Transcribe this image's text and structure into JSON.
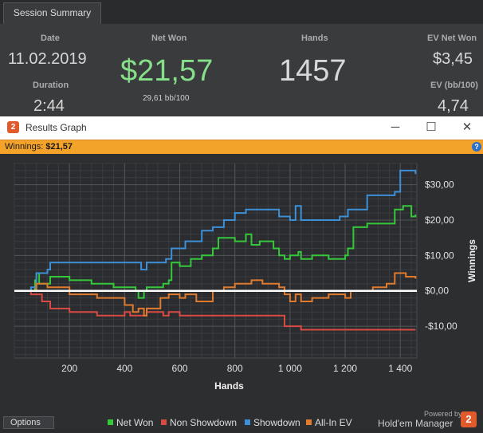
{
  "summary": {
    "tab_label": "Session Summary",
    "date_label": "Date",
    "date_value": "11.02.2019",
    "duration_label": "Duration",
    "duration_value": "2:44",
    "net_won_label": "Net Won",
    "net_won_value": "$21,57",
    "net_won_sub": "29,61 bb/100",
    "hands_label": "Hands",
    "hands_value": "1457",
    "ev_net_won_label": "EV Net Won",
    "ev_net_won_value": "$3,45",
    "ev_bb_label": "EV (bb/100)",
    "ev_bb_value": "4,74"
  },
  "window": {
    "title": "Results Graph",
    "app_icon": "holdem-manager-icon",
    "minimize": "─",
    "maximize": "☐",
    "close": "✕",
    "winnings_label": "Winnings:",
    "winnings_value": "$21,57",
    "help": "?"
  },
  "footer": {
    "options_label": "Options",
    "powered_by": "Powered by",
    "brand": "Hold'em Manager"
  },
  "chart_data": {
    "type": "line",
    "xlabel": "Hands",
    "ylabel": "Winnings",
    "xlim": [
      0,
      1460
    ],
    "ylim": [
      -19,
      36
    ],
    "x_ticks": [
      200,
      400,
      600,
      800,
      1000,
      1200,
      1400
    ],
    "x_tick_labels": [
      "200",
      "400",
      "600",
      "800",
      "1 000",
      "1 200",
      "1 400"
    ],
    "y_ticks": [
      30,
      20,
      10,
      0,
      -10
    ],
    "y_tick_labels": [
      "$30,00",
      "$20,00",
      "$10,00",
      "$0,00",
      "-$10,00"
    ],
    "grid": true,
    "zero_line_color": "#ffffff",
    "legend_position": "bottom",
    "series": [
      {
        "name": "Net Won",
        "color": "#34c83a",
        "points": [
          [
            0,
            0
          ],
          [
            60,
            0
          ],
          [
            75,
            3
          ],
          [
            80,
            5
          ],
          [
            90,
            2
          ],
          [
            130,
            4
          ],
          [
            200,
            3
          ],
          [
            280,
            2
          ],
          [
            360,
            1
          ],
          [
            440,
            0
          ],
          [
            450,
            -2
          ],
          [
            470,
            0
          ],
          [
            480,
            1
          ],
          [
            540,
            2
          ],
          [
            560,
            3
          ],
          [
            570,
            8
          ],
          [
            600,
            7
          ],
          [
            640,
            9
          ],
          [
            680,
            10
          ],
          [
            720,
            12
          ],
          [
            740,
            15
          ],
          [
            800,
            14
          ],
          [
            840,
            16
          ],
          [
            860,
            13
          ],
          [
            890,
            14
          ],
          [
            940,
            12
          ],
          [
            960,
            10
          ],
          [
            980,
            9
          ],
          [
            1000,
            10
          ],
          [
            1030,
            11
          ],
          [
            1040,
            9
          ],
          [
            1080,
            10
          ],
          [
            1140,
            9
          ],
          [
            1200,
            10
          ],
          [
            1210,
            12
          ],
          [
            1230,
            18
          ],
          [
            1280,
            19
          ],
          [
            1360,
            19
          ],
          [
            1380,
            23
          ],
          [
            1410,
            24
          ],
          [
            1440,
            21
          ],
          [
            1455,
            21.57
          ]
        ]
      },
      {
        "name": "Non Showdown",
        "color": "#d94a42",
        "points": [
          [
            0,
            0
          ],
          [
            60,
            -1
          ],
          [
            100,
            -3
          ],
          [
            130,
            -5
          ],
          [
            200,
            -6
          ],
          [
            300,
            -7
          ],
          [
            400,
            -6
          ],
          [
            420,
            -7
          ],
          [
            480,
            -6
          ],
          [
            540,
            -7
          ],
          [
            560,
            -6
          ],
          [
            600,
            -7
          ],
          [
            700,
            -7
          ],
          [
            800,
            -7
          ],
          [
            900,
            -7
          ],
          [
            960,
            -7
          ],
          [
            980,
            -10
          ],
          [
            1040,
            -11
          ],
          [
            1100,
            -11
          ],
          [
            1200,
            -11
          ],
          [
            1300,
            -11
          ],
          [
            1400,
            -11
          ],
          [
            1455,
            -11
          ]
        ]
      },
      {
        "name": "Showdown",
        "color": "#3d8fd6",
        "points": [
          [
            0,
            0
          ],
          [
            60,
            1
          ],
          [
            80,
            5
          ],
          [
            120,
            6
          ],
          [
            130,
            8
          ],
          [
            200,
            8
          ],
          [
            300,
            8
          ],
          [
            460,
            6
          ],
          [
            480,
            8
          ],
          [
            550,
            9
          ],
          [
            570,
            12
          ],
          [
            620,
            14
          ],
          [
            680,
            17
          ],
          [
            720,
            18
          ],
          [
            760,
            20
          ],
          [
            800,
            22
          ],
          [
            840,
            23
          ],
          [
            900,
            23
          ],
          [
            960,
            21
          ],
          [
            1000,
            20
          ],
          [
            1020,
            24
          ],
          [
            1040,
            20
          ],
          [
            1100,
            20
          ],
          [
            1180,
            21
          ],
          [
            1210,
            23
          ],
          [
            1280,
            27
          ],
          [
            1380,
            28
          ],
          [
            1400,
            34
          ],
          [
            1440,
            34
          ],
          [
            1455,
            33
          ]
        ]
      },
      {
        "name": "All-In EV",
        "color": "#e07b2e",
        "points": [
          [
            0,
            0
          ],
          [
            60,
            0
          ],
          [
            80,
            2
          ],
          [
            120,
            1
          ],
          [
            200,
            -1
          ],
          [
            300,
            -2
          ],
          [
            400,
            -4
          ],
          [
            430,
            -6
          ],
          [
            450,
            -5
          ],
          [
            470,
            -7
          ],
          [
            480,
            -5
          ],
          [
            530,
            -2
          ],
          [
            560,
            -1
          ],
          [
            600,
            -2
          ],
          [
            620,
            -1
          ],
          [
            660,
            -3
          ],
          [
            720,
            0
          ],
          [
            760,
            1
          ],
          [
            800,
            2
          ],
          [
            860,
            3
          ],
          [
            880,
            3
          ],
          [
            900,
            2
          ],
          [
            960,
            1
          ],
          [
            980,
            -1
          ],
          [
            1000,
            -3
          ],
          [
            1020,
            -1
          ],
          [
            1040,
            -3
          ],
          [
            1080,
            -2
          ],
          [
            1140,
            -1
          ],
          [
            1200,
            -2
          ],
          [
            1220,
            0
          ],
          [
            1300,
            1
          ],
          [
            1350,
            2
          ],
          [
            1380,
            5
          ],
          [
            1420,
            4
          ],
          [
            1455,
            3.45
          ]
        ]
      }
    ]
  }
}
